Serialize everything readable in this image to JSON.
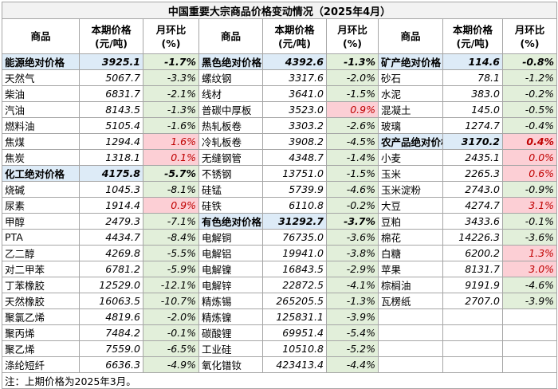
{
  "title": "中国重要大宗商品价格变动情况（2025年4月）",
  "headers": {
    "name": "商品",
    "price_line1": "本期价格",
    "price_line2": "(元/吨)",
    "change_line1": "月环比",
    "change_line2": "(%)"
  },
  "rows": [
    [
      {
        "n": "能源绝对价格",
        "p": "3925.1",
        "c": "-1.7%",
        "sum": true
      },
      {
        "n": "黑色绝对价格",
        "p": "4392.6",
        "c": "-1.3%",
        "sum": true
      },
      {
        "n": "矿产绝对价格",
        "p": "114.6",
        "c": "-0.8%",
        "sum": true
      }
    ],
    [
      {
        "n": "天然气",
        "p": "5067.7",
        "c": "-3.3%"
      },
      {
        "n": "螺纹钢",
        "p": "3317.6",
        "c": "-2.0%"
      },
      {
        "n": "砂石",
        "p": "78.1",
        "c": "-1.2%"
      }
    ],
    [
      {
        "n": "柴油",
        "p": "6831.7",
        "c": "-2.1%"
      },
      {
        "n": "线材",
        "p": "3641.0",
        "c": "-1.5%"
      },
      {
        "n": "水泥",
        "p": "383.0",
        "c": "-0.2%"
      }
    ],
    [
      {
        "n": "汽油",
        "p": "8143.5",
        "c": "-1.3%"
      },
      {
        "n": "普碳中厚板",
        "p": "3523.0",
        "c": "0.9%"
      },
      {
        "n": "混凝土",
        "p": "145.0",
        "c": "-0.5%"
      }
    ],
    [
      {
        "n": "燃料油",
        "p": "5105.4",
        "c": "-1.6%"
      },
      {
        "n": "热轧板卷",
        "p": "3303.2",
        "c": "-2.6%"
      },
      {
        "n": "玻璃",
        "p": "1274.7",
        "c": "-0.4%"
      }
    ],
    [
      {
        "n": "焦煤",
        "p": "1294.4",
        "c": "1.6%"
      },
      {
        "n": "冷轧板卷",
        "p": "3908.2",
        "c": "-4.5%"
      },
      {
        "n": "农产品绝对价格",
        "p": "3170.2",
        "c": "0.4%",
        "sum": true
      }
    ],
    [
      {
        "n": "焦炭",
        "p": "1318.1",
        "c": "0.1%"
      },
      {
        "n": "无缝钢管",
        "p": "4348.7",
        "c": "-1.4%"
      },
      {
        "n": "小麦",
        "p": "2435.1",
        "c": "0.0%"
      }
    ],
    [
      {
        "n": "化工绝对价格",
        "p": "4175.8",
        "c": "-5.7%",
        "sum": true
      },
      {
        "n": "不锈钢",
        "p": "13751.0",
        "c": "-1.5%"
      },
      {
        "n": "玉米",
        "p": "2265.3",
        "c": "0.6%"
      }
    ],
    [
      {
        "n": "烧碱",
        "p": "1045.3",
        "c": "-8.1%"
      },
      {
        "n": "硅锰",
        "p": "5739.9",
        "c": "-4.6%"
      },
      {
        "n": "玉米淀粉",
        "p": "2743.0",
        "c": "-0.9%"
      }
    ],
    [
      {
        "n": "尿素",
        "p": "1914.4",
        "c": "0.9%"
      },
      {
        "n": "硅铁",
        "p": "6110.8",
        "c": "-0.2%"
      },
      {
        "n": "大豆",
        "p": "4274.7",
        "c": "3.1%"
      }
    ],
    [
      {
        "n": "甲醇",
        "p": "2479.3",
        "c": "-7.1%"
      },
      {
        "n": "有色绝对价格",
        "p": "31292.7",
        "c": "-3.7%",
        "sum": true
      },
      {
        "n": "豆粕",
        "p": "3433.6",
        "c": "-0.1%"
      }
    ],
    [
      {
        "n": "PTA",
        "p": "4434.7",
        "c": "-8.4%"
      },
      {
        "n": "电解铜",
        "p": "76735.0",
        "c": "-3.6%"
      },
      {
        "n": "棉花",
        "p": "14226.3",
        "c": "-3.6%"
      }
    ],
    [
      {
        "n": "乙二醇",
        "p": "4269.8",
        "c": "-5.5%"
      },
      {
        "n": "电解铝",
        "p": "19941.0",
        "c": "-3.8%"
      },
      {
        "n": "白糖",
        "p": "6200.2",
        "c": "1.3%"
      }
    ],
    [
      {
        "n": "对二甲苯",
        "p": "6781.2",
        "c": "-5.9%"
      },
      {
        "n": "电解镍",
        "p": "16843.5",
        "c": "-2.9%"
      },
      {
        "n": "苹果",
        "p": "8131.7",
        "c": "3.0%"
      }
    ],
    [
      {
        "n": "丁苯橡胶",
        "p": "12529.0",
        "c": "-12.1%"
      },
      {
        "n": "电解锌",
        "p": "22872.5",
        "c": "-4.1%"
      },
      {
        "n": "棕榈油",
        "p": "9191.9",
        "c": "-4.6%"
      }
    ],
    [
      {
        "n": "天然橡胶",
        "p": "16063.5",
        "c": "-10.7%"
      },
      {
        "n": "精炼锡",
        "p": "265205.5",
        "c": "-1.3%"
      },
      {
        "n": "瓦楞纸",
        "p": "2707.0",
        "c": "-3.9%"
      }
    ],
    [
      {
        "n": "聚氯乙烯",
        "p": "4819.6",
        "c": "-2.0%"
      },
      {
        "n": "精炼镍",
        "p": "125831.1",
        "c": "-3.9%"
      },
      null
    ],
    [
      {
        "n": "聚丙烯",
        "p": "7484.2",
        "c": "-0.1%"
      },
      {
        "n": "碳酸锂",
        "p": "69951.4",
        "c": "-5.4%"
      },
      null
    ],
    [
      {
        "n": "聚乙烯",
        "p": "7559.0",
        "c": "-6.5%"
      },
      {
        "n": "工业硅",
        "p": "10510.8",
        "c": "-5.2%"
      },
      null
    ],
    [
      {
        "n": "涤纶短纤",
        "p": "6636.3",
        "c": "-4.9%"
      },
      {
        "n": "氧化镨钕",
        "p": "423413.4",
        "c": "-4.4%"
      },
      null
    ]
  ],
  "note": "注：上期价格为2025年3月。",
  "colors": {
    "summary_bg": "#ddebf7",
    "negative_bg": "#e2efda",
    "positive_bg": "#fccfd5",
    "grid": "#a6a6a6"
  }
}
